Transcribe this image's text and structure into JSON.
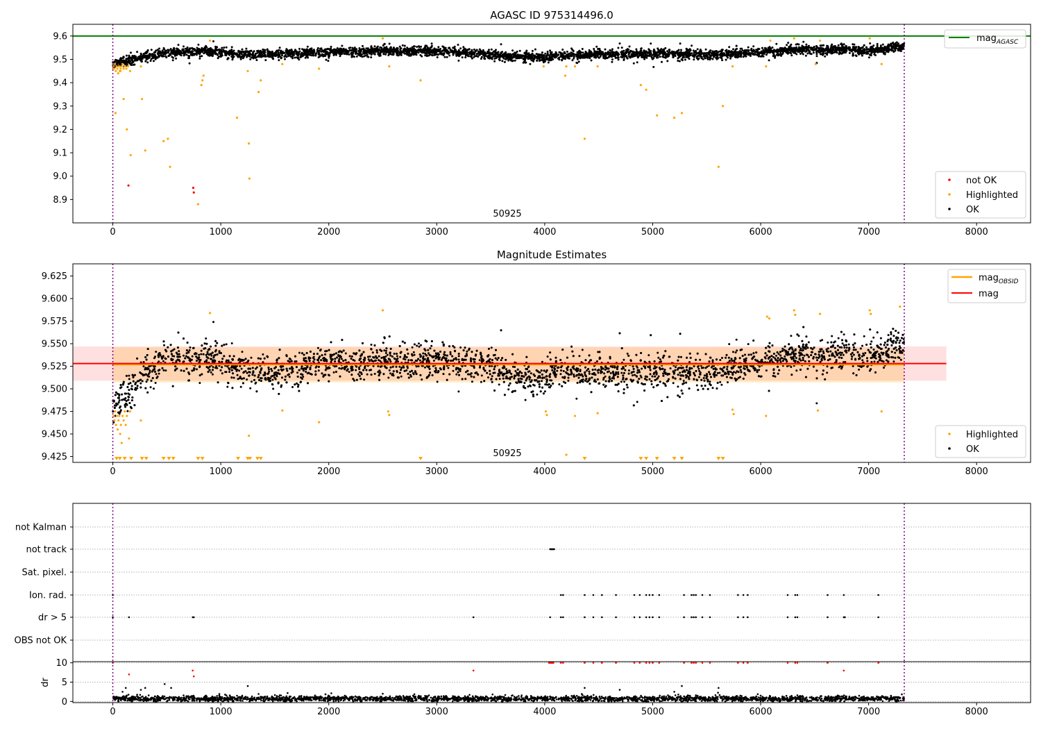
{
  "chart_data": [
    {
      "type": "scatter",
      "title": "AGASC ID 975314496.0",
      "x_range": [
        -370,
        8500
      ],
      "y_range": [
        8.8,
        9.65
      ],
      "xticks": [
        0,
        1000,
        2000,
        3000,
        4000,
        5000,
        6000,
        7000,
        8000
      ],
      "xtick_labels": [
        "0",
        "1000",
        "2000",
        "3000",
        "4000",
        "5000",
        "6000",
        "7000",
        "8000"
      ],
      "yticks": [
        8.9,
        9.0,
        9.1,
        9.2,
        9.3,
        9.4,
        9.5,
        9.6
      ],
      "ytick_labels": [
        "8.9",
        "9.0",
        "9.1",
        "9.2",
        "9.3",
        "9.4",
        "9.5",
        "9.6"
      ],
      "vlines": [
        0,
        7330
      ],
      "hline": {
        "y": 9.6,
        "color": "#008000"
      },
      "annotation": {
        "text": "50925",
        "x": 3650,
        "y": 8.83
      },
      "legend_upper": [
        {
          "label": "mag",
          "sub": "AGASC",
          "color": "#008000",
          "kind": "line"
        }
      ],
      "legend_lower": [
        {
          "label": "not OK",
          "color": "#ff0000",
          "kind": "dot"
        },
        {
          "label": "Highlighted",
          "color": "#ffa500",
          "kind": "dot"
        },
        {
          "label": "OK",
          "color": "#000000",
          "kind": "dot"
        }
      ],
      "series": [
        {
          "name": "not OK",
          "color": "#ff0000",
          "x": [
            145,
            745,
            750
          ],
          "y": [
            8.96,
            8.95,
            8.93
          ]
        },
        {
          "name": "Highlighted",
          "color": "#ffa500",
          "x": [
            5,
            12,
            20,
            28,
            35,
            42,
            50,
            58,
            65,
            72,
            80,
            90,
            100,
            110,
            125,
            140,
            160,
            25,
            70,
            100,
            130,
            165,
            260,
            270,
            300,
            470,
            510,
            530,
            790,
            820,
            830,
            840,
            900,
            1150,
            1250,
            1260,
            1265,
            1350,
            1370,
            1570,
            1910,
            2500,
            2560,
            2850,
            3990,
            4190,
            4200,
            4280,
            4370,
            4490,
            4890,
            4940,
            5040,
            5200,
            5270,
            5610,
            5650,
            5740,
            6050,
            6090,
            6310,
            6510,
            6550,
            7010,
            7120
          ],
          "y": [
            9.47,
            9.46,
            9.48,
            9.45,
            9.47,
            9.46,
            9.44,
            9.47,
            9.45,
            9.46,
            9.47,
            9.48,
            9.46,
            9.47,
            9.46,
            9.47,
            9.45,
            9.27,
            9.45,
            9.33,
            9.2,
            9.09,
            9.47,
            9.33,
            9.11,
            9.15,
            9.16,
            9.04,
            8.88,
            9.39,
            9.41,
            9.43,
            9.58,
            9.25,
            9.45,
            9.14,
            8.99,
            9.36,
            9.41,
            9.48,
            9.46,
            9.59,
            9.47,
            9.41,
            9.47,
            9.43,
            9.47,
            9.47,
            9.16,
            9.47,
            9.39,
            9.37,
            9.26,
            9.25,
            9.27,
            9.04,
            9.3,
            9.47,
            9.47,
            9.58,
            9.59,
            9.48,
            9.58,
            9.59,
            9.48
          ]
        },
        {
          "name": "OK",
          "color": "#000000",
          "trend": {
            "x": [
              0,
              200,
              400,
              600,
              900,
              1200,
              1600,
              2000,
              2500,
              3000,
              3500,
              4000,
              4100,
              4500,
              5000,
              5500,
              6000,
              6500,
              7000,
              7330
            ],
            "y": [
              9.48,
              9.5,
              9.52,
              9.53,
              9.535,
              9.52,
              9.525,
              9.53,
              9.535,
              9.535,
              9.52,
              9.505,
              9.515,
              9.52,
              9.525,
              9.52,
              9.53,
              9.545,
              9.535,
              9.555
            ]
          },
          "x_range": [
            0,
            7330
          ],
          "spread": 0.014
        }
      ]
    },
    {
      "type": "scatter",
      "title": "Magnitude Estimates",
      "x_range": [
        -370,
        8500
      ],
      "y_range": [
        9.4185,
        9.6385
      ],
      "xticks": [
        0,
        1000,
        2000,
        3000,
        4000,
        5000,
        6000,
        7000,
        8000
      ],
      "xtick_labels": [
        "0",
        "1000",
        "2000",
        "3000",
        "4000",
        "5000",
        "6000",
        "7000",
        "8000"
      ],
      "yticks": [
        9.425,
        9.45,
        9.475,
        9.5,
        9.525,
        9.55,
        9.575,
        9.6,
        9.625
      ],
      "ytick_labels": [
        "9.425",
        "9.450",
        "9.475",
        "9.500",
        "9.525",
        "9.550",
        "9.575",
        "9.600",
        "9.625"
      ],
      "vlines": [
        0,
        7330
      ],
      "annotation": {
        "text": "50925",
        "x": 3650,
        "y": 9.427
      },
      "mag_line": {
        "x": [
          -370,
          7720
        ],
        "y": 9.528,
        "band": [
          9.509,
          9.547
        ],
        "color": "#ff0000"
      },
      "obsid_line": {
        "x": [
          0,
          7330
        ],
        "y": 9.527,
        "band": [
          9.507,
          9.546
        ],
        "color": "#ffa500"
      },
      "legend_upper": [
        {
          "label": "mag",
          "sub": "OBSID",
          "color": "#ffa500",
          "kind": "line"
        },
        {
          "label": "mag",
          "sub": "",
          "color": "#ff0000",
          "kind": "line"
        }
      ],
      "legend_lower": [
        {
          "label": "Highlighted",
          "color": "#ffa500",
          "kind": "dot"
        },
        {
          "label": "OK",
          "color": "#000000",
          "kind": "dot"
        }
      ],
      "off_scale_markers": [
        35,
        65,
        110,
        170,
        270,
        310,
        470,
        520,
        560,
        790,
        830,
        1160,
        1250,
        1270,
        1340,
        1370,
        2850,
        4370,
        4890,
        4940,
        5040,
        5200,
        5270,
        5610,
        5650
      ],
      "series": [
        {
          "name": "Highlighted",
          "color": "#ffa500",
          "x": [
            8,
            15,
            22,
            30,
            38,
            45,
            52,
            60,
            68,
            75,
            82,
            90,
            100,
            110,
            120,
            130,
            150,
            160,
            260,
            900,
            1260,
            1570,
            1910,
            2500,
            2550,
            2560,
            4010,
            4020,
            4200,
            4280,
            4490,
            5740,
            5750,
            6050,
            6060,
            6080,
            6310,
            6320,
            6530,
            6550,
            7010,
            7020,
            7120,
            7290
          ],
          "y": [
            9.47,
            9.465,
            9.475,
            9.46,
            9.47,
            9.455,
            9.465,
            9.47,
            9.45,
            9.46,
            9.44,
            9.47,
            9.465,
            9.475,
            9.46,
            9.47,
            9.445,
            9.475,
            9.465,
            9.584,
            9.448,
            9.476,
            9.463,
            9.587,
            9.475,
            9.471,
            9.475,
            9.471,
            9.427,
            9.47,
            9.473,
            9.477,
            9.472,
            9.47,
            9.58,
            9.578,
            9.587,
            9.582,
            9.476,
            9.583,
            9.587,
            9.583,
            9.475,
            9.591
          ]
        },
        {
          "name": "OK",
          "color": "#000000",
          "trend": {
            "x": [
              0,
              150,
              300,
              500,
              900,
              1200,
              1600,
              2000,
              2500,
              3000,
              3500,
              3950,
              4100,
              4500,
              5000,
              5500,
              6000,
              6500,
              7000,
              7330
            ],
            "y": [
              9.48,
              9.495,
              9.518,
              9.532,
              9.535,
              9.52,
              9.52,
              9.53,
              9.528,
              9.532,
              9.525,
              9.505,
              9.52,
              9.518,
              9.52,
              9.518,
              9.53,
              9.54,
              9.535,
              9.55
            ]
          },
          "x_range": [
            0,
            7330
          ],
          "spread": 0.013
        }
      ]
    },
    {
      "type": "scatter",
      "title": "",
      "x_range": [
        -370,
        8500
      ],
      "xticks": [
        0,
        1000,
        2000,
        3000,
        4000,
        5000,
        6000,
        7000,
        8000
      ],
      "xtick_labels": [
        "0",
        "1000",
        "2000",
        "3000",
        "4000",
        "5000",
        "6000",
        "7000",
        "8000"
      ],
      "vlines": [
        0,
        7330
      ],
      "flag_labels": [
        "not Kalman",
        "not track",
        "Sat. pixel.",
        "Ion. rad.",
        "dr > 5",
        "OBS not OK"
      ],
      "flags": {
        "not track": [
          4050,
          4058,
          4065,
          4072,
          4080,
          4088
        ],
        "Ion. rad.": [
          0,
          4150,
          4170,
          4370,
          4450,
          4530,
          4660,
          4830,
          4880,
          4940,
          4970,
          5000,
          5060,
          5290,
          5360,
          5380,
          5400,
          5460,
          5530,
          5790,
          5840,
          5880,
          6250,
          6320,
          6340,
          6620,
          6770,
          7090
        ],
        "dr > 5": [
          0,
          150,
          740,
          750,
          3340,
          4050,
          4150,
          4170,
          4370,
          4450,
          4530,
          4660,
          4830,
          4880,
          4940,
          4970,
          5000,
          5060,
          5290,
          5360,
          5380,
          5400,
          5460,
          5530,
          5790,
          5840,
          5880,
          6250,
          6320,
          6340,
          6620,
          6770,
          6780,
          7090
        ]
      },
      "dr_ylabel": "dr",
      "dr_yticks": [
        0,
        5,
        10
      ],
      "dr_ytick_labels": [
        "0",
        "5",
        "10"
      ],
      "dr_y_range": [
        -0.3,
        10.3
      ],
      "dr_outliers": {
        "x": [
          0,
          150,
          740,
          750,
          3340,
          4040,
          4050,
          4060,
          4070,
          4080,
          4150,
          4170,
          4370,
          4450,
          4530,
          4660,
          4830,
          4880,
          4940,
          4970,
          5000,
          5060,
          5290,
          5360,
          5380,
          5400,
          5460,
          5530,
          5790,
          5840,
          5880,
          6250,
          6320,
          6340,
          6620,
          6770,
          7090
        ],
        "y": [
          10,
          7,
          8,
          6.5,
          8,
          10,
          10,
          10,
          10,
          10,
          10,
          10,
          10,
          10,
          10,
          10,
          10,
          10,
          10,
          10,
          10,
          10,
          10,
          10,
          10,
          10,
          10,
          10,
          10,
          10,
          10,
          10,
          10,
          10,
          10,
          8,
          10
        ],
        "color": "#ff0000"
      },
      "dr_low_extra": {
        "x": [
          90,
          120,
          260,
          300,
          480,
          540,
          1250,
          2500,
          4370,
          5200,
          5270,
          5610,
          6000
        ],
        "y": [
          2.5,
          3.5,
          3,
          3.5,
          4.5,
          3.5,
          4,
          2,
          3.5,
          2.5,
          4,
          3.5,
          1.5
        ]
      },
      "dr_series": {
        "name": "dr",
        "x_range": [
          0,
          7330
        ],
        "median": 0.7,
        "spread": 0.35
      }
    }
  ]
}
